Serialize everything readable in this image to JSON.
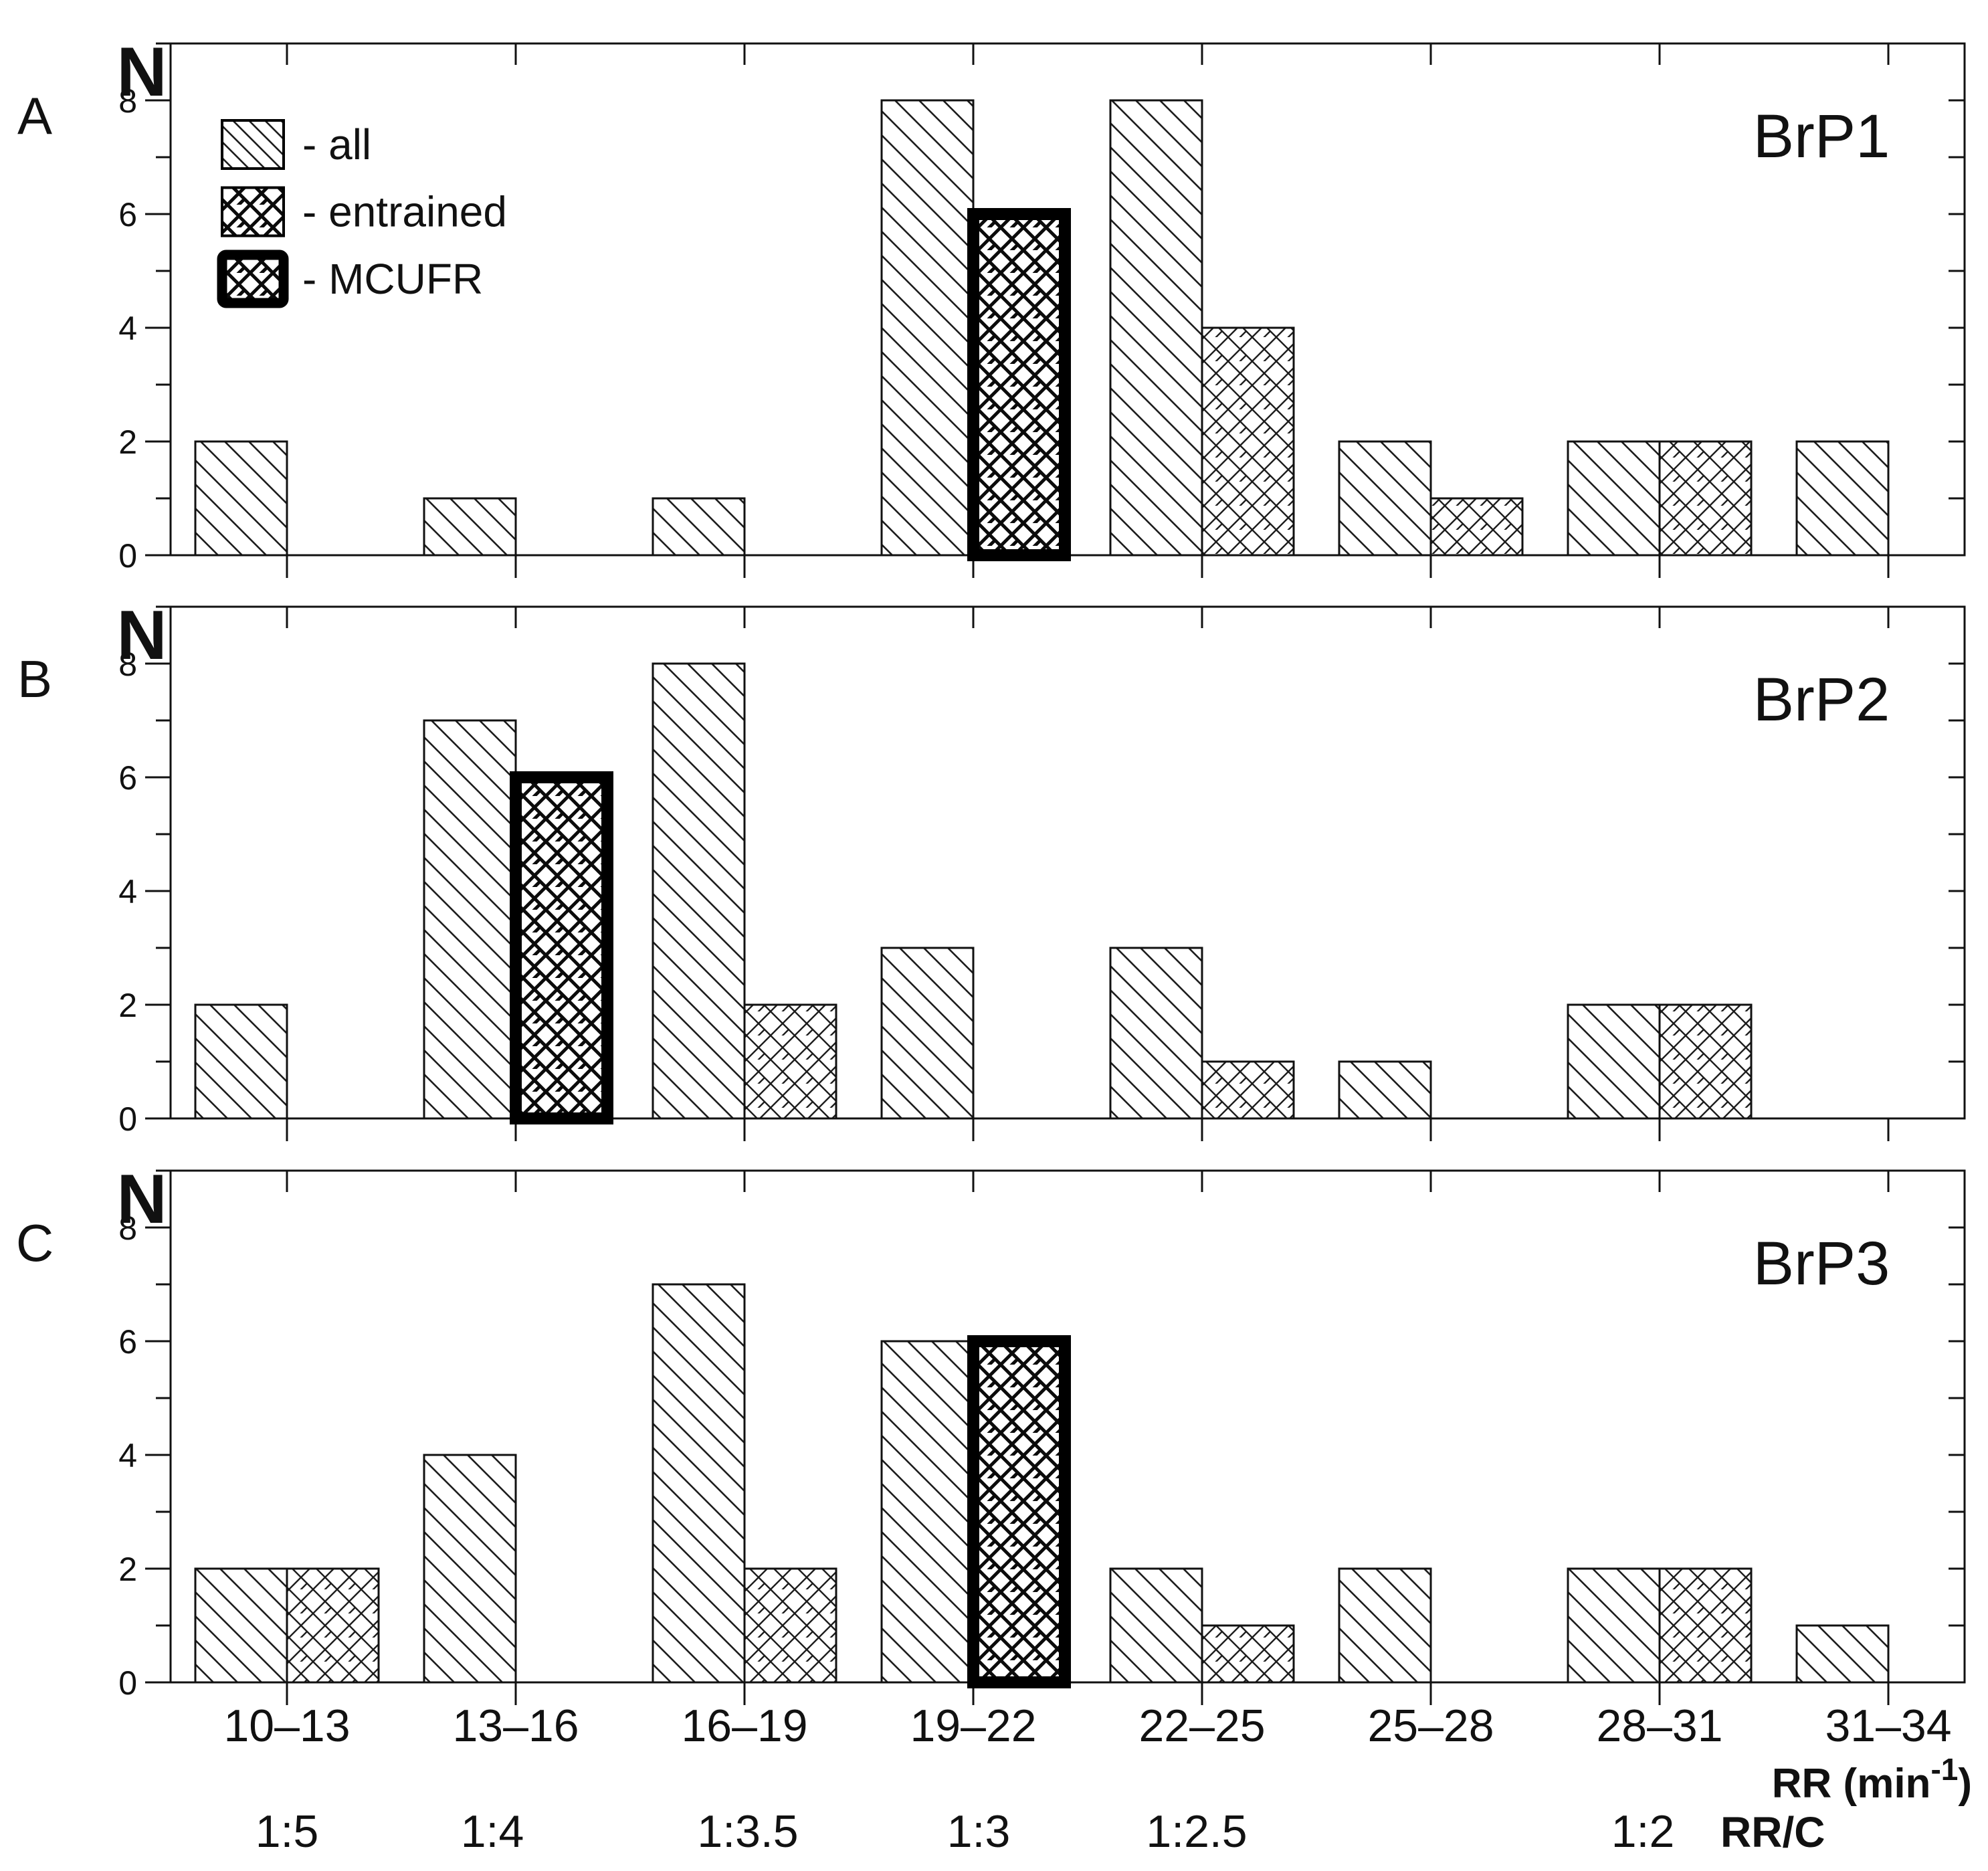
{
  "colors": {
    "ink": "#111111",
    "background": "#ffffff"
  },
  "y_axis": {
    "label": "N"
  },
  "x_axis": {
    "rr_title": {
      "prefix": "RR (min",
      "sup": "-1",
      "suffix": ")"
    },
    "ratio_title": "RR/C"
  },
  "legend": {
    "items": [
      {
        "swatch": "diagonal-hatch-swatch",
        "label": "- all"
      },
      {
        "swatch": "crosshatch-swatch",
        "label": "- entrained"
      },
      {
        "swatch": "crosshatch-thick-border-swatch",
        "label": "- MCUFR"
      }
    ]
  },
  "chart_data": {
    "type": "bar",
    "ylabel": "N",
    "ylim": [
      0,
      9
    ],
    "yticks": [
      0,
      2,
      4,
      6,
      8
    ],
    "grid": false,
    "legend_position": "upper-left-panel-A",
    "categories": [
      "10–13",
      "13–16",
      "16–19",
      "19–22",
      "22–25",
      "25–28",
      "28–31",
      "31–34"
    ],
    "bin_centers": [
      11.5,
      14.5,
      17.5,
      20.5,
      23.5,
      26.5,
      29.5,
      32.5
    ],
    "ratio_labels": [
      "1:5",
      "1:4",
      "1:3.5",
      "1:3",
      "1:2.5",
      "",
      "1:2",
      ""
    ],
    "panels": [
      {
        "letter": "A",
        "title": "BrP1",
        "series": [
          {
            "name": "all",
            "values": [
              2,
              1,
              1,
              8,
              8,
              2,
              2,
              2
            ]
          },
          {
            "name": "entrained",
            "values": [
              0,
              0,
              0,
              0,
              4,
              1,
              2,
              0
            ]
          },
          {
            "name": "MCUFR",
            "values": [
              0,
              0,
              0,
              6,
              0,
              0,
              0,
              0
            ]
          }
        ]
      },
      {
        "letter": "B",
        "title": "BrP2",
        "series": [
          {
            "name": "all",
            "values": [
              2,
              7,
              8,
              3,
              3,
              1,
              2,
              0
            ]
          },
          {
            "name": "entrained",
            "values": [
              0,
              0,
              2,
              0,
              1,
              0,
              2,
              0
            ]
          },
          {
            "name": "MCUFR",
            "values": [
              0,
              6,
              0,
              0,
              0,
              0,
              0,
              0
            ]
          }
        ]
      },
      {
        "letter": "C",
        "title": "BrP3",
        "series": [
          {
            "name": "all",
            "values": [
              2,
              4,
              7,
              6,
              2,
              2,
              2,
              1
            ]
          },
          {
            "name": "entrained",
            "values": [
              2,
              0,
              2,
              0,
              1,
              0,
              2,
              0
            ]
          },
          {
            "name": "MCUFR",
            "values": [
              0,
              0,
              0,
              6,
              0,
              0,
              0,
              0
            ]
          }
        ]
      }
    ]
  }
}
